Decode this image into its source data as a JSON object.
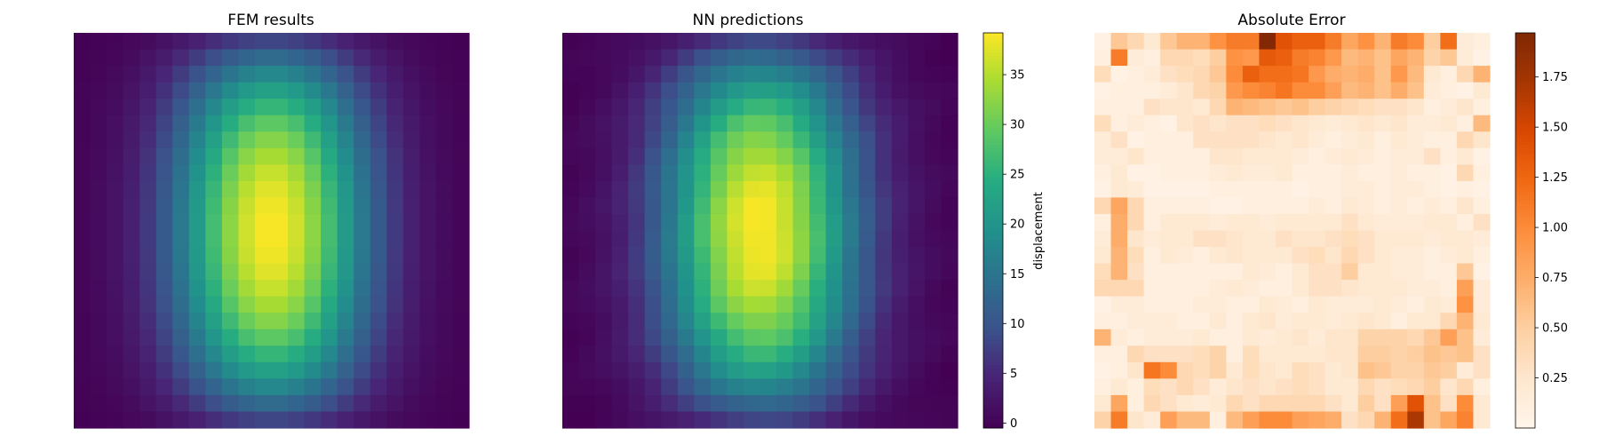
{
  "chart_data": [
    {
      "type": "heatmap",
      "title": "FEM results",
      "grid_size": [
        24,
        24
      ],
      "field": "separable_bump",
      "colormap": "viridis",
      "value_range": [
        0,
        39
      ],
      "note_values": "value(i,j) = 39 * exp(-((j-11.5)/5.8)^2) * (1 - 0.85*((i-11.5)/12)^2) clipped at 0, i=row, j=col",
      "peak": {
        "row": 11,
        "col": 11,
        "value": 39
      }
    },
    {
      "type": "heatmap",
      "title": "NN predictions",
      "grid_size": [
        24,
        24
      ],
      "field": "separable_bump",
      "colormap": "viridis",
      "value_range": [
        0,
        39
      ],
      "colorbar": {
        "label": "displacement",
        "ticks": [
          0,
          5,
          10,
          15,
          20,
          25,
          30,
          35
        ],
        "range": [
          -0.5,
          39.2
        ]
      }
    },
    {
      "type": "heatmap",
      "title": "Absolute Error",
      "grid_size": [
        24,
        24
      ],
      "colormap": "oranges",
      "value_range": [
        0.0,
        1.97
      ],
      "colorbar": {
        "label": "",
        "ticks": [
          0.25,
          0.5,
          0.75,
          1.0,
          1.25,
          1.5,
          1.75
        ],
        "tick_labels": [
          "0.25",
          "0.50",
          "0.75",
          "1.00",
          "1.25",
          "1.50",
          "1.75"
        ],
        "range": [
          0.0,
          1.97
        ]
      },
      "error_rows": [
        [
          0.05,
          0.55,
          0.4,
          0.2,
          0.55,
          0.7,
          0.7,
          0.95,
          1.1,
          1.1,
          1.95,
          1.4,
          1.3,
          1.3,
          1.1,
          0.8,
          0.95,
          0.7,
          1.1,
          1.0,
          0.5,
          1.2,
          0.15,
          0.1
        ],
        [
          0.1,
          1.1,
          0.15,
          0.1,
          0.4,
          0.4,
          0.35,
          0.5,
          0.95,
          0.9,
          1.35,
          1.3,
          1.1,
          1.05,
          0.9,
          0.65,
          0.7,
          0.6,
          0.8,
          0.7,
          0.45,
          0.55,
          0.15,
          0.05
        ],
        [
          0.35,
          0.05,
          0.1,
          0.15,
          0.3,
          0.35,
          0.4,
          0.55,
          1.0,
          1.3,
          1.2,
          1.2,
          1.15,
          0.9,
          0.75,
          0.7,
          0.75,
          0.6,
          0.9,
          0.65,
          0.2,
          0.1,
          0.4,
          0.7
        ],
        [
          0.05,
          0.1,
          0.1,
          0.1,
          0.15,
          0.25,
          0.4,
          0.45,
          0.9,
          1.0,
          1.05,
          1.15,
          1.0,
          1.0,
          0.85,
          0.65,
          0.7,
          0.6,
          0.75,
          0.6,
          0.15,
          0.1,
          0.05,
          0.2
        ],
        [
          0.1,
          0.1,
          0.1,
          0.3,
          0.25,
          0.25,
          0.2,
          0.4,
          0.7,
          0.65,
          0.6,
          0.55,
          0.6,
          0.5,
          0.45,
          0.4,
          0.35,
          0.3,
          0.3,
          0.25,
          0.1,
          0.15,
          0.25,
          0.1
        ],
        [
          0.35,
          0.1,
          0.15,
          0.1,
          0.05,
          0.25,
          0.3,
          0.25,
          0.3,
          0.3,
          0.35,
          0.3,
          0.25,
          0.2,
          0.15,
          0.2,
          0.25,
          0.2,
          0.25,
          0.15,
          0.15,
          0.2,
          0.1,
          0.65
        ],
        [
          0.15,
          0.3,
          0.05,
          0.1,
          0.1,
          0.1,
          0.3,
          0.3,
          0.3,
          0.3,
          0.25,
          0.2,
          0.25,
          0.15,
          0.1,
          0.15,
          0.2,
          0.1,
          0.2,
          0.15,
          0.1,
          0.1,
          0.4,
          0.25
        ],
        [
          0.15,
          0.15,
          0.25,
          0.1,
          0.1,
          0.1,
          0.1,
          0.25,
          0.25,
          0.2,
          0.2,
          0.2,
          0.15,
          0.1,
          0.15,
          0.2,
          0.15,
          0.1,
          0.15,
          0.15,
          0.3,
          0.1,
          0.2,
          0.05
        ],
        [
          0.1,
          0.2,
          0.05,
          0.05,
          0.1,
          0.1,
          0.1,
          0.15,
          0.2,
          0.15,
          0.15,
          0.2,
          0.1,
          0.1,
          0.1,
          0.15,
          0.1,
          0.1,
          0.15,
          0.1,
          0.1,
          0.05,
          0.4,
          0.1
        ],
        [
          0.05,
          0.2,
          0.15,
          0.05,
          0.05,
          0.05,
          0.05,
          0.1,
          0.1,
          0.1,
          0.1,
          0.1,
          0.05,
          0.1,
          0.1,
          0.15,
          0.15,
          0.1,
          0.15,
          0.15,
          0.1,
          0.05,
          0.1,
          0.05
        ],
        [
          0.4,
          0.8,
          0.4,
          0.1,
          0.1,
          0.1,
          0.1,
          0.05,
          0.05,
          0.1,
          0.1,
          0.1,
          0.1,
          0.15,
          0.1,
          0.2,
          0.15,
          0.1,
          0.15,
          0.1,
          0.15,
          0.1,
          0.25,
          0.1
        ],
        [
          0.1,
          0.75,
          0.4,
          0.1,
          0.2,
          0.2,
          0.2,
          0.15,
          0.2,
          0.2,
          0.15,
          0.2,
          0.2,
          0.2,
          0.2,
          0.3,
          0.2,
          0.15,
          0.15,
          0.15,
          0.2,
          0.2,
          0.1,
          0.3
        ],
        [
          0.15,
          0.75,
          0.25,
          0.15,
          0.2,
          0.2,
          0.3,
          0.3,
          0.25,
          0.2,
          0.2,
          0.3,
          0.25,
          0.25,
          0.3,
          0.35,
          0.3,
          0.2,
          0.2,
          0.2,
          0.15,
          0.2,
          0.2,
          0.15
        ],
        [
          0.2,
          0.7,
          0.35,
          0.1,
          0.2,
          0.15,
          0.1,
          0.2,
          0.25,
          0.2,
          0.2,
          0.2,
          0.3,
          0.35,
          0.25,
          0.4,
          0.3,
          0.2,
          0.15,
          0.15,
          0.1,
          0.15,
          0.2,
          0.1
        ],
        [
          0.35,
          0.7,
          0.3,
          0.1,
          0.1,
          0.1,
          0.1,
          0.1,
          0.1,
          0.2,
          0.15,
          0.1,
          0.2,
          0.3,
          0.3,
          0.5,
          0.2,
          0.2,
          0.15,
          0.15,
          0.1,
          0.1,
          0.55,
          0.05
        ],
        [
          0.4,
          0.4,
          0.4,
          0.1,
          0.1,
          0.1,
          0.1,
          0.15,
          0.2,
          0.15,
          0.1,
          0.1,
          0.2,
          0.3,
          0.3,
          0.25,
          0.2,
          0.2,
          0.2,
          0.15,
          0.15,
          0.1,
          0.85,
          0.15
        ],
        [
          0.05,
          0.15,
          0.15,
          0.1,
          0.1,
          0.1,
          0.15,
          0.15,
          0.1,
          0.1,
          0.2,
          0.15,
          0.1,
          0.2,
          0.15,
          0.15,
          0.15,
          0.2,
          0.15,
          0.1,
          0.2,
          0.15,
          0.95,
          0.15
        ],
        [
          0.1,
          0.1,
          0.15,
          0.15,
          0.15,
          0.1,
          0.1,
          0.2,
          0.1,
          0.2,
          0.25,
          0.15,
          0.2,
          0.2,
          0.15,
          0.2,
          0.25,
          0.2,
          0.1,
          0.2,
          0.2,
          0.4,
          0.7,
          0.2
        ],
        [
          0.7,
          0.15,
          0.1,
          0.15,
          0.15,
          0.15,
          0.2,
          0.1,
          0.1,
          0.2,
          0.15,
          0.2,
          0.25,
          0.15,
          0.25,
          0.25,
          0.45,
          0.45,
          0.45,
          0.4,
          0.55,
          0.85,
          0.6,
          0.15
        ],
        [
          0.1,
          0.1,
          0.4,
          0.3,
          0.3,
          0.3,
          0.35,
          0.45,
          0.1,
          0.35,
          0.2,
          0.2,
          0.2,
          0.2,
          0.25,
          0.25,
          0.5,
          0.5,
          0.45,
          0.5,
          0.6,
          0.55,
          0.6,
          0.3
        ],
        [
          0.05,
          0.1,
          0.25,
          1.15,
          1.0,
          0.4,
          0.35,
          0.45,
          0.2,
          0.35,
          0.25,
          0.2,
          0.35,
          0.3,
          0.2,
          0.25,
          0.6,
          0.55,
          0.45,
          0.45,
          0.55,
          0.5,
          0.15,
          0.3
        ],
        [
          0.1,
          0.2,
          0.1,
          0.35,
          0.3,
          0.4,
          0.3,
          0.15,
          0.25,
          0.3,
          0.25,
          0.3,
          0.35,
          0.3,
          0.2,
          0.2,
          0.4,
          0.3,
          0.35,
          0.4,
          0.5,
          0.25,
          0.4,
          0.1
        ],
        [
          0.2,
          0.8,
          0.1,
          0.4,
          0.3,
          0.2,
          0.15,
          0.2,
          0.4,
          0.3,
          0.4,
          0.4,
          0.4,
          0.4,
          0.3,
          0.2,
          0.5,
          0.3,
          0.85,
          1.4,
          0.6,
          0.3,
          1.0,
          0.2
        ],
        [
          0.45,
          1.1,
          0.25,
          0.15,
          0.85,
          0.65,
          0.65,
          0.1,
          0.65,
          0.85,
          1.0,
          1.0,
          0.85,
          0.8,
          0.75,
          0.3,
          0.4,
          0.7,
          1.2,
          1.7,
          0.6,
          0.8,
          1.05,
          0.2
        ]
      ]
    }
  ]
}
